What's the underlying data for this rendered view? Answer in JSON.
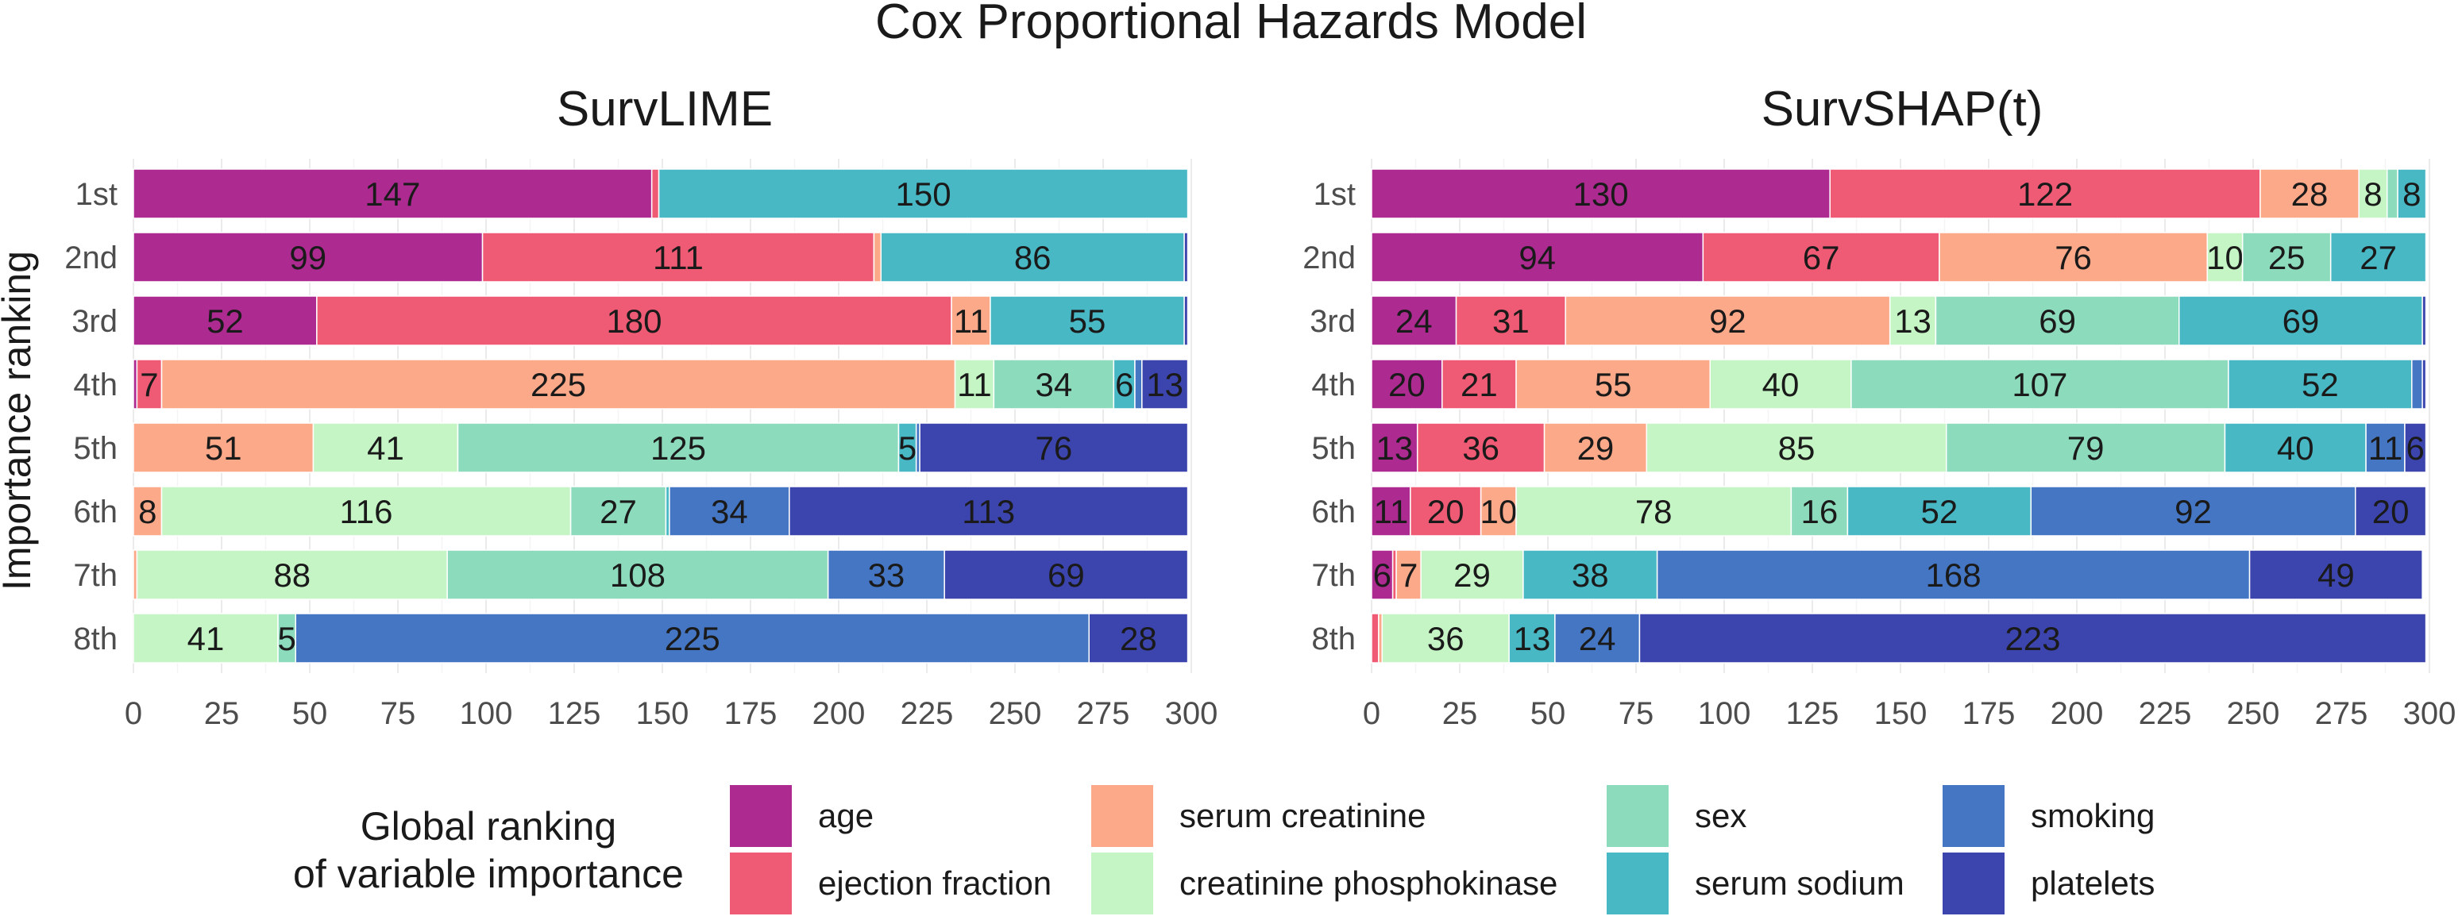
{
  "title": "Cox Proportional Hazards Model",
  "colors": {
    "age": "#ad2b91",
    "ejection fraction": "#ef5b74",
    "serum creatinine": "#fca98a",
    "creatinine phosphokinase": "#c5f5c5",
    "sex": "#8ddbbd",
    "serum sodium": "#48b8c4",
    "smoking": "#4576c3",
    "platelets": "#3c44ad"
  },
  "legend": {
    "title_line1": "Global ranking",
    "title_line2": "of variable importance",
    "items": [
      "age",
      "ejection fraction",
      "serum creatinine",
      "creatinine phosphokinase",
      "sex",
      "serum sodium",
      "smoking",
      "platelets"
    ]
  },
  "chart_data": [
    {
      "type": "bar",
      "orientation": "horizontal",
      "stacked": true,
      "title": "SurvLIME",
      "ylabel": "Importance ranking",
      "xlabel": "",
      "xlim": [
        0,
        300
      ],
      "xticks": [
        0,
        25,
        50,
        75,
        100,
        125,
        150,
        175,
        200,
        225,
        250,
        275,
        300
      ],
      "categories": [
        "1st",
        "2nd",
        "3rd",
        "4th",
        "5th",
        "6th",
        "7th",
        "8th"
      ],
      "series": [
        {
          "name": "age",
          "values": [
            147,
            99,
            52,
            1,
            0,
            0,
            0,
            0
          ]
        },
        {
          "name": "ejection fraction",
          "values": [
            2,
            111,
            180,
            7,
            0,
            0,
            0,
            0
          ]
        },
        {
          "name": "serum creatinine",
          "values": [
            0,
            2,
            11,
            225,
            51,
            8,
            1,
            0
          ]
        },
        {
          "name": "creatinine phosphokinase",
          "values": [
            0,
            0,
            0,
            11,
            41,
            116,
            88,
            41
          ]
        },
        {
          "name": "sex",
          "values": [
            0,
            0,
            0,
            34,
            125,
            27,
            108,
            5
          ]
        },
        {
          "name": "serum sodium",
          "values": [
            150,
            86,
            55,
            6,
            5,
            1,
            0,
            0
          ]
        },
        {
          "name": "smoking",
          "values": [
            0,
            0,
            0,
            2,
            1,
            34,
            33,
            225
          ]
        },
        {
          "name": "platelets",
          "values": [
            0,
            1,
            1,
            13,
            76,
            113,
            69,
            28
          ]
        }
      ]
    },
    {
      "type": "bar",
      "orientation": "horizontal",
      "stacked": true,
      "title": "SurvSHAP(t)",
      "ylabel": "",
      "xlabel": "",
      "xlim": [
        0,
        300
      ],
      "xticks": [
        0,
        25,
        50,
        75,
        100,
        125,
        150,
        175,
        200,
        225,
        250,
        275,
        300
      ],
      "categories": [
        "1st",
        "2nd",
        "3rd",
        "4th",
        "5th",
        "6th",
        "7th",
        "8th"
      ],
      "series": [
        {
          "name": "age",
          "values": [
            130,
            94,
            24,
            20,
            13,
            11,
            6,
            0
          ]
        },
        {
          "name": "ejection fraction",
          "values": [
            122,
            67,
            31,
            21,
            36,
            20,
            1,
            2
          ]
        },
        {
          "name": "serum creatinine",
          "values": [
            28,
            76,
            92,
            55,
            29,
            10,
            7,
            1
          ]
        },
        {
          "name": "creatinine phosphokinase",
          "values": [
            8,
            10,
            13,
            40,
            85,
            78,
            29,
            36
          ]
        },
        {
          "name": "sex",
          "values": [
            3,
            25,
            69,
            107,
            79,
            16,
            0,
            0
          ]
        },
        {
          "name": "serum sodium",
          "values": [
            8,
            27,
            69,
            52,
            40,
            52,
            38,
            13
          ]
        },
        {
          "name": "smoking",
          "values": [
            0,
            0,
            0,
            3,
            11,
            92,
            168,
            24
          ]
        },
        {
          "name": "platelets",
          "values": [
            0,
            0,
            1,
            1,
            6,
            20,
            49,
            223
          ]
        }
      ]
    }
  ]
}
